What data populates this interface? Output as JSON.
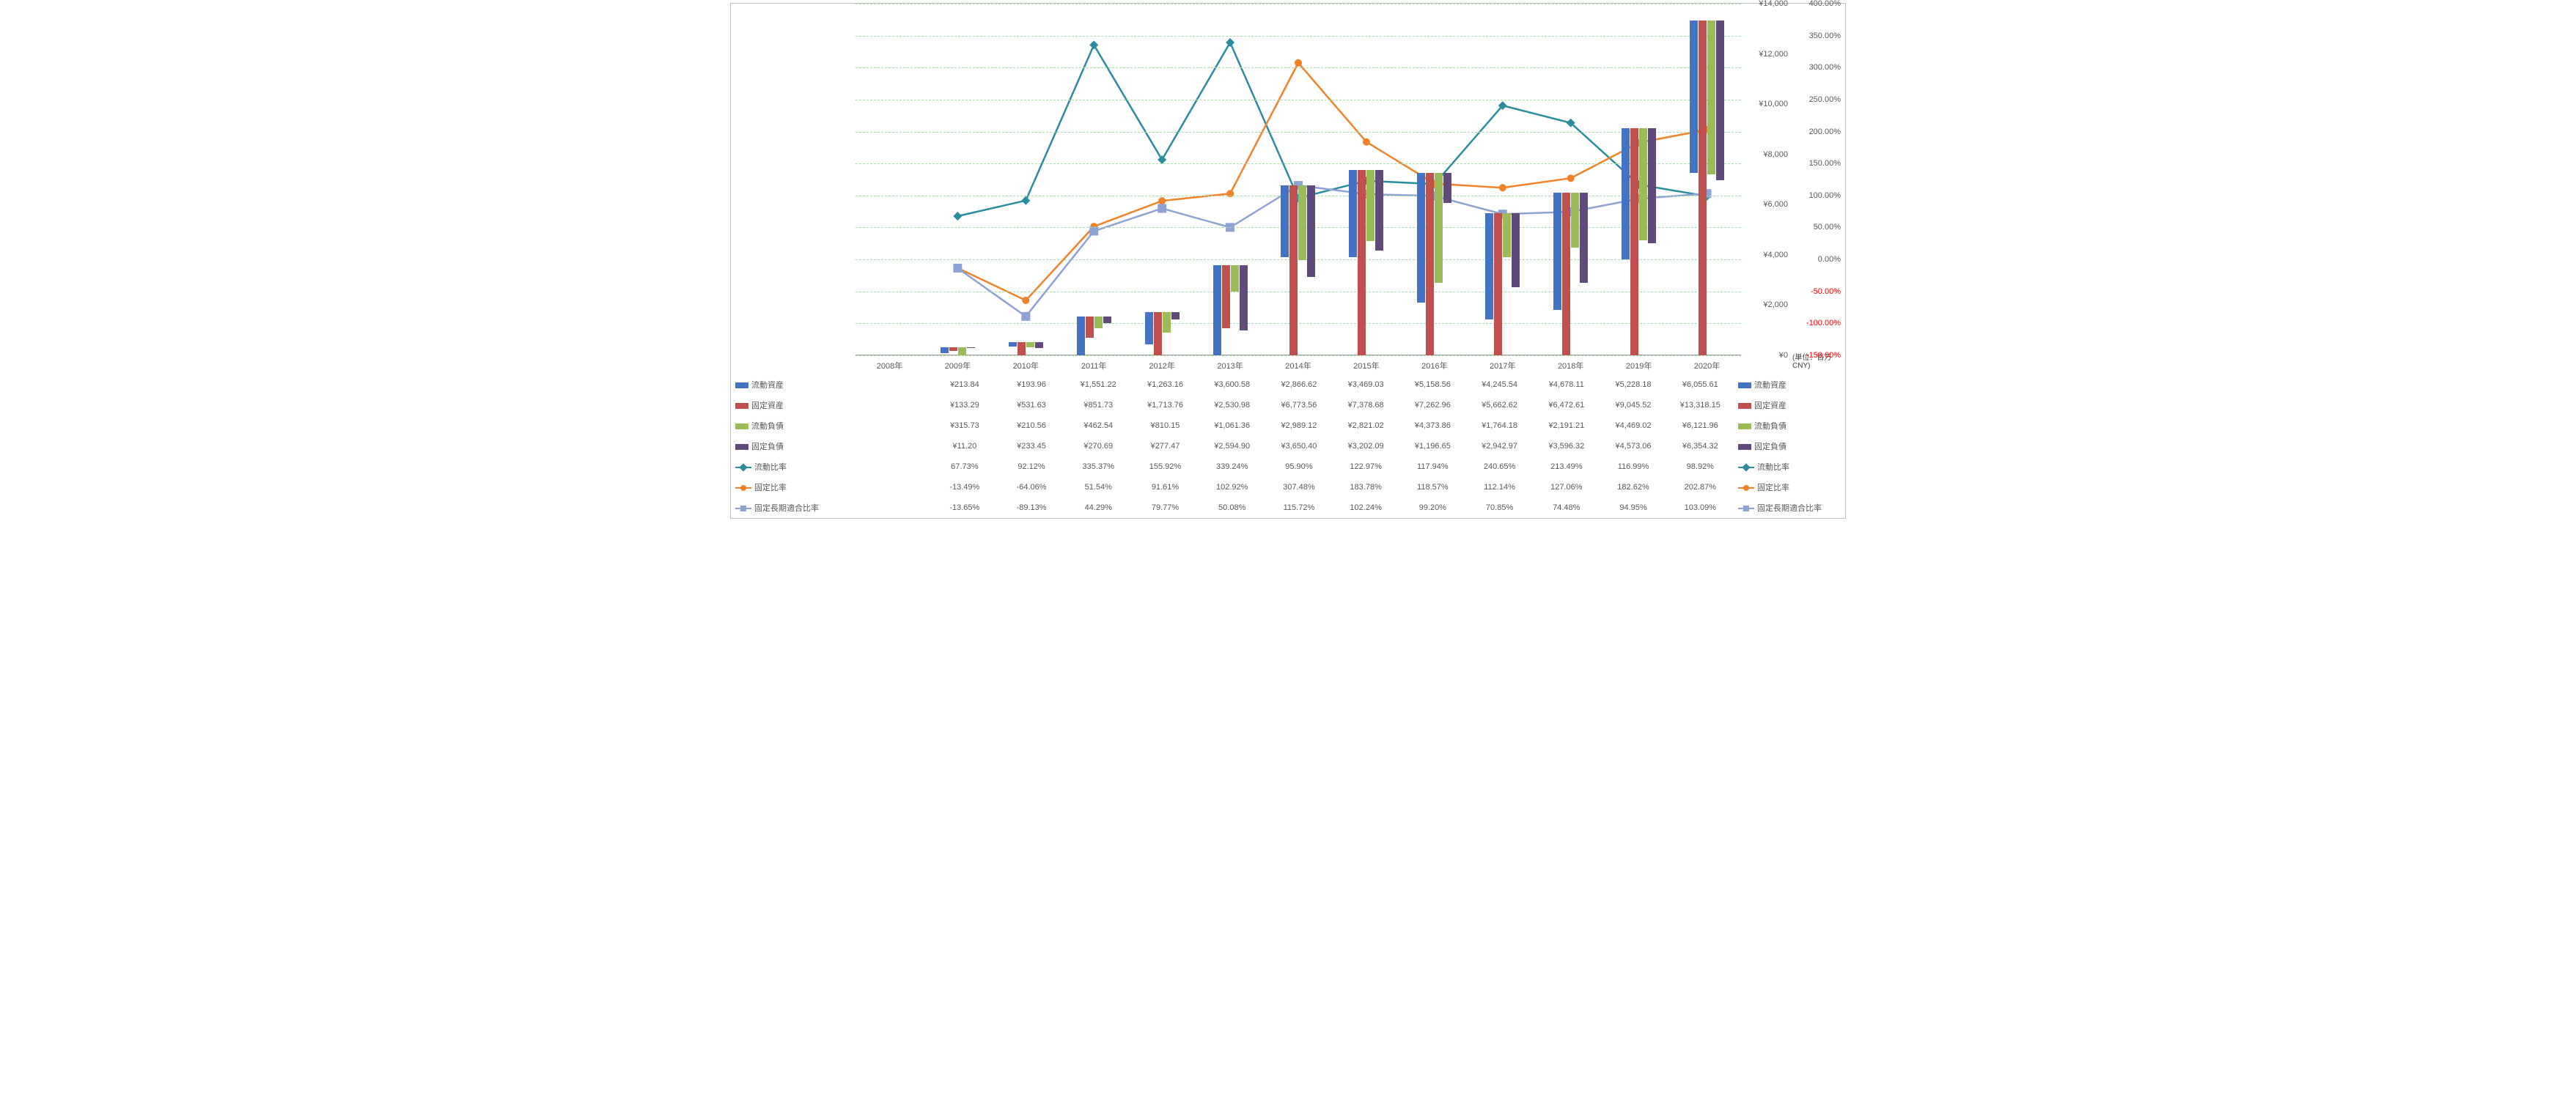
{
  "years": [
    "2008年",
    "2009年",
    "2010年",
    "2011年",
    "2012年",
    "2013年",
    "2014年",
    "2015年",
    "2016年",
    "2017年",
    "2018年",
    "2019年",
    "2020年"
  ],
  "unit_label": "(単位：百万CNY)",
  "yaxis_yen": {
    "min": 0,
    "max": 14000,
    "ticks": [
      0,
      2000,
      4000,
      6000,
      8000,
      10000,
      12000,
      14000
    ],
    "labels": [
      "¥0",
      "¥2,000",
      "¥4,000",
      "¥6,000",
      "¥8,000",
      "¥10,000",
      "¥12,000",
      "¥14,000"
    ],
    "color": "#595959"
  },
  "yaxis_pct": {
    "min": -150,
    "max": 400,
    "ticks": [
      -150,
      -100,
      -50,
      0,
      50,
      100,
      150,
      200,
      250,
      300,
      350,
      400
    ],
    "labels": [
      "-150.00%",
      "-100.00%",
      "-50.00%",
      "0.00%",
      "50.00%",
      "100.00%",
      "150.00%",
      "200.00%",
      "250.00%",
      "300.00%",
      "350.00%",
      "400.00%"
    ],
    "neg_color": "#ff0000",
    "pos_color": "#595959"
  },
  "series": {
    "bar1": {
      "label": "流動資産",
      "color": "#4472c4",
      "values": [
        null,
        213.84,
        193.96,
        1551.22,
        1263.16,
        3600.58,
        2866.62,
        3469.03,
        5158.56,
        4245.54,
        4678.11,
        5228.18,
        6055.61
      ],
      "display": [
        "",
        "¥213.84",
        "¥193.96",
        "¥1,551.22",
        "¥1,263.16",
        "¥3,600.58",
        "¥2,866.62",
        "¥3,469.03",
        "¥5,158.56",
        "¥4,245.54",
        "¥4,678.11",
        "¥5,228.18",
        "¥6,055.61"
      ]
    },
    "bar2": {
      "label": "固定資産",
      "color": "#c0504d",
      "values": [
        null,
        133.29,
        531.63,
        851.73,
        1713.76,
        2530.98,
        6773.56,
        7378.68,
        7262.96,
        5662.62,
        6472.61,
        9045.52,
        13318.15
      ],
      "display": [
        "",
        "¥133.29",
        "¥531.63",
        "¥851.73",
        "¥1,713.76",
        "¥2,530.98",
        "¥6,773.56",
        "¥7,378.68",
        "¥7,262.96",
        "¥5,662.62",
        "¥6,472.61",
        "¥9,045.52",
        "¥13,318.15"
      ]
    },
    "bar3": {
      "label": "流動負債",
      "color": "#9bbb59",
      "values": [
        null,
        315.73,
        210.56,
        462.54,
        810.15,
        1061.36,
        2989.12,
        2821.02,
        4373.86,
        1764.18,
        2191.21,
        4469.02,
        6121.96
      ],
      "display": [
        "",
        "¥315.73",
        "¥210.56",
        "¥462.54",
        "¥810.15",
        "¥1,061.36",
        "¥2,989.12",
        "¥2,821.02",
        "¥4,373.86",
        "¥1,764.18",
        "¥2,191.21",
        "¥4,469.02",
        "¥6,121.96"
      ]
    },
    "bar4": {
      "label": "固定負債",
      "color": "#604a7b",
      "values": [
        null,
        11.2,
        233.45,
        270.69,
        277.47,
        2594.9,
        3650.4,
        3202.09,
        1196.65,
        2942.97,
        3596.32,
        4573.06,
        6354.32
      ],
      "display": [
        "",
        "¥11.20",
        "¥233.45",
        "¥270.69",
        "¥277.47",
        "¥2,594.90",
        "¥3,650.40",
        "¥3,202.09",
        "¥1,196.65",
        "¥2,942.97",
        "¥3,596.32",
        "¥4,573.06",
        "¥6,354.32"
      ]
    },
    "line1": {
      "label": "流動比率",
      "color": "#2b8ca0",
      "marker": "diamond",
      "values": [
        null,
        67.73,
        92.12,
        335.37,
        155.92,
        339.24,
        95.9,
        122.97,
        117.94,
        240.65,
        213.49,
        116.99,
        98.92
      ],
      "display": [
        "",
        "67.73%",
        "92.12%",
        "335.37%",
        "155.92%",
        "339.24%",
        "95.90%",
        "122.97%",
        "117.94%",
        "240.65%",
        "213.49%",
        "116.99%",
        "98.92%"
      ]
    },
    "line2": {
      "label": "固定比率",
      "color": "#f08228",
      "marker": "circle",
      "values": [
        null,
        -13.49,
        -64.06,
        51.54,
        91.61,
        102.92,
        307.48,
        183.78,
        118.57,
        112.14,
        127.06,
        182.62,
        202.87
      ],
      "display": [
        "",
        "-13.49%",
        "-64.06%",
        "51.54%",
        "91.61%",
        "102.92%",
        "307.48%",
        "183.78%",
        "118.57%",
        "112.14%",
        "127.06%",
        "182.62%",
        "202.87%"
      ]
    },
    "line3": {
      "label": "固定長期適合比率",
      "color": "#8fa2d4",
      "marker": "square",
      "values": [
        null,
        -13.65,
        -89.13,
        44.29,
        79.77,
        50.08,
        115.72,
        102.24,
        99.2,
        70.85,
        74.48,
        94.95,
        103.09
      ],
      "display": [
        "",
        "-13.65%",
        "-89.13%",
        "44.29%",
        "79.77%",
        "50.08%",
        "115.72%",
        "102.24%",
        "99.20%",
        "70.85%",
        "74.48%",
        "94.95%",
        "103.09%"
      ]
    }
  },
  "grid_color": "#a7e0a7",
  "background_color": "#ffffff",
  "zero_line_color": "#999999"
}
